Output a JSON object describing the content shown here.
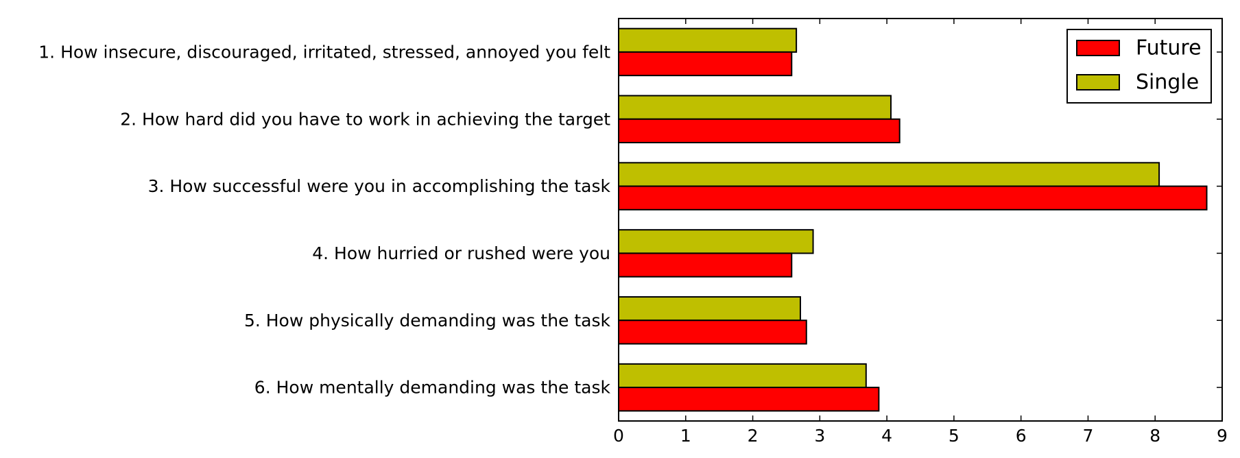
{
  "chart_data": {
    "type": "bar",
    "orientation": "horizontal",
    "categories": [
      "1. How insecure, discouraged, irritated, stressed, annoyed you felt",
      "2. How hard did you have to work in achieving the target",
      "3. How successful were you in accomplishing the task",
      "4. How hurried or rushed were you",
      "5. How physically demanding was the task",
      "6. How mentally demanding was the task"
    ],
    "series": [
      {
        "name": "Future",
        "color": "#ff0000",
        "values": [
          2.58,
          4.19,
          8.77,
          2.58,
          2.8,
          3.88
        ]
      },
      {
        "name": "Single",
        "color": "#bfbf00",
        "values": [
          2.65,
          4.06,
          8.06,
          2.9,
          2.71,
          3.69
        ]
      }
    ],
    "xlim": [
      0,
      9
    ],
    "xticks": [
      "0",
      "1",
      "2",
      "3",
      "4",
      "5",
      "6",
      "7",
      "8",
      "9"
    ],
    "title": "",
    "xlabel": "",
    "ylabel": "",
    "grid": false,
    "legend_position": "top-right"
  }
}
